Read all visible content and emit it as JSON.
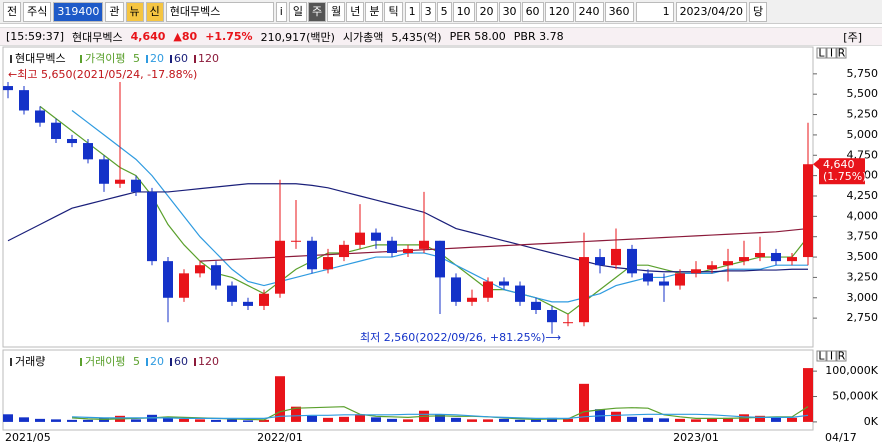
{
  "toolbar": {
    "market": "전",
    "asset": "주식",
    "code": "319400",
    "watch": "관",
    "news": "뉴",
    "credit": "신",
    "name": "현대무벡스",
    "info": "i",
    "periods": [
      "일",
      "주",
      "월",
      "년",
      "분",
      "틱"
    ],
    "intervals": [
      "1",
      "3",
      "5",
      "10",
      "20",
      "30",
      "60",
      "120",
      "240",
      "360"
    ],
    "count": "1",
    "date": "2023/04/20",
    "current": "당"
  },
  "info_bar": {
    "time": "[15:59:37]",
    "name": "현대무벡스",
    "price": "4,640",
    "change": "▲80",
    "change_rate": "+1.75%",
    "volume": "210,917(백만)",
    "market_cap_label": "시가총액",
    "market_cap": "5,435(억)",
    "per": "PER 58.00",
    "pbr": "PBR 3.78",
    "tag": "[주]"
  },
  "panel_buttons": [
    "L",
    "I",
    "R"
  ],
  "chart_data": [
    {
      "type": "candlestick",
      "title": "현대무벡스",
      "legend_title": "가격이평",
      "up_color": "#e8141a",
      "down_color": "#1432c8",
      "open": [
        5600,
        5550,
        5300,
        5150,
        4950,
        4900,
        4700,
        4400,
        4450,
        4300,
        3450,
        3000,
        3300,
        3400,
        3150,
        2950,
        2900,
        3050,
        3700,
        3700,
        3350,
        3500,
        3650,
        3800,
        3700,
        3550,
        3600,
        3700,
        3250,
        2950,
        3000,
        3200,
        3150,
        2950,
        2850,
        2700,
        2700,
        3500,
        3400,
        3600,
        3300,
        3200,
        3150,
        3300,
        3350,
        3400,
        3450,
        3500,
        3550,
        3450,
        3500
      ],
      "high": [
        5650,
        5600,
        5350,
        5200,
        5000,
        4950,
        4750,
        5650,
        4500,
        4350,
        3500,
        3350,
        3450,
        3450,
        3200,
        3000,
        3100,
        4450,
        4200,
        3750,
        3600,
        3700,
        4150,
        3850,
        3750,
        3650,
        4300,
        3700,
        3300,
        3100,
        3250,
        3250,
        3200,
        3000,
        2900,
        2800,
        3800,
        3600,
        3850,
        3650,
        3350,
        3300,
        3350,
        3450,
        3450,
        3600,
        3700,
        3750,
        3600,
        3550,
        5150
      ],
      "low": [
        5450,
        5250,
        5100,
        4900,
        4850,
        4650,
        4300,
        4350,
        4250,
        3400,
        2700,
        2950,
        3250,
        3100,
        2900,
        2850,
        2850,
        3000,
        3600,
        3300,
        3300,
        3450,
        3600,
        3600,
        3500,
        3500,
        3550,
        2800,
        2900,
        2900,
        2950,
        3100,
        2900,
        2800,
        2560,
        2650,
        2650,
        3300,
        3350,
        3250,
        3150,
        2950,
        3100,
        3250,
        3300,
        3200,
        3400,
        3450,
        3400,
        3400,
        3400
      ],
      "close": [
        5550,
        5300,
        5150,
        4950,
        4900,
        4700,
        4400,
        4450,
        4300,
        3450,
        3000,
        3300,
        3400,
        3150,
        2950,
        2900,
        3050,
        3700,
        3700,
        3350,
        3500,
        3650,
        3800,
        3700,
        3550,
        3600,
        3700,
        3250,
        2950,
        3000,
        3200,
        3150,
        2950,
        2850,
        2700,
        2700,
        3500,
        3400,
        3600,
        3300,
        3200,
        3150,
        3300,
        3350,
        3400,
        3450,
        3500,
        3550,
        3450,
        3500,
        4640
      ],
      "series": [
        {
          "name": "5",
          "color": "#5aa02c",
          "values": [
            null,
            null,
            5350,
            5200,
            5050,
            4900,
            4750,
            4600,
            4500,
            4250,
            3900,
            3650,
            3450,
            3300,
            3250,
            3150,
            3050,
            3200,
            3350,
            3450,
            3550,
            3550,
            3600,
            3650,
            3650,
            3650,
            3650,
            3550,
            3400,
            3250,
            3100,
            3100,
            3050,
            3000,
            2900,
            2800,
            2950,
            3100,
            3250,
            3400,
            3400,
            3350,
            3300,
            3300,
            3350,
            3400,
            3450,
            3500,
            3500,
            3500,
            3750
          ]
        },
        {
          "name": "20",
          "color": "#2f9be0",
          "values": [
            null,
            null,
            null,
            null,
            5300,
            5150,
            5000,
            4850,
            4700,
            4500,
            4250,
            4000,
            3750,
            3550,
            3350,
            3200,
            3150,
            3200,
            3250,
            3300,
            3350,
            3400,
            3450,
            3500,
            3500,
            3550,
            3550,
            3500,
            3400,
            3300,
            3200,
            3100,
            3050,
            3000,
            2950,
            2950,
            3000,
            3050,
            3150,
            3200,
            3250,
            3250,
            3300,
            3300,
            3300,
            3350,
            3350,
            3350,
            3400,
            3400,
            3400
          ]
        },
        {
          "name": "60",
          "color": "#1a1f7a",
          "values": [
            3700,
            3800,
            3900,
            4000,
            4100,
            4150,
            4200,
            4250,
            4300,
            4300,
            4300,
            4320,
            4340,
            4360,
            4380,
            4400,
            4400,
            4400,
            4400,
            4380,
            4350,
            4300,
            4250,
            4200,
            4150,
            4100,
            4050,
            3950,
            3850,
            3800,
            3750,
            3700,
            3650,
            3600,
            3550,
            3500,
            3450,
            3400,
            3370,
            3350,
            3330,
            3320,
            3320,
            3320,
            3320,
            3330,
            3330,
            3340,
            3340,
            3350,
            3350
          ]
        },
        {
          "name": "120",
          "color": "#8b1a3a",
          "values": [
            null,
            null,
            null,
            null,
            null,
            null,
            null,
            null,
            null,
            null,
            null,
            null,
            3450,
            3460,
            3470,
            3480,
            3490,
            3500,
            3510,
            3520,
            3530,
            3540,
            3550,
            3560,
            3570,
            3580,
            3590,
            3600,
            3610,
            3620,
            3630,
            3640,
            3650,
            3660,
            3670,
            3680,
            3690,
            3700,
            3710,
            3720,
            3730,
            3740,
            3750,
            3760,
            3770,
            3780,
            3790,
            3800,
            3810,
            3830,
            3850
          ]
        }
      ],
      "ylim": [
        2420,
        5920
      ],
      "yticks": [
        {
          "value": 2750,
          "label": "2,750"
        },
        {
          "value": 3000,
          "label": "3,000"
        },
        {
          "value": 3250,
          "label": "3,250"
        },
        {
          "value": 3500,
          "label": "3,500"
        },
        {
          "value": 3750,
          "label": "3,750"
        },
        {
          "value": 4000,
          "label": "4,000"
        },
        {
          "value": 4250,
          "label": "4,250"
        },
        {
          "value": 4500,
          "label": "4,500"
        },
        {
          "value": 4750,
          "label": "4,750"
        },
        {
          "value": 5000,
          "label": "5,000"
        },
        {
          "value": 5250,
          "label": "5,250"
        },
        {
          "value": 5500,
          "label": "5,500"
        },
        {
          "value": 5750,
          "label": "5,750"
        }
      ],
      "annotations": [
        "←최고 5,650(2021/05/24, -17.88%)",
        "최저 2,560(2022/09/26, +81.25%)⟶"
      ],
      "price_tag": {
        "value": 4640,
        "label": "4,640"
      },
      "price_tag_change": "(1.75%)"
    },
    {
      "type": "volume",
      "title": "거래량",
      "legend_title": "거래이평",
      "categories": [
        "2021/05",
        null,
        null,
        null,
        null,
        null,
        null,
        null,
        null,
        null,
        null,
        null,
        null,
        null,
        null,
        null,
        null,
        "2022/01",
        null,
        null,
        null,
        null,
        null,
        null,
        null,
        null,
        null,
        null,
        null,
        null,
        null,
        null,
        null,
        null,
        null,
        null,
        null,
        null,
        null,
        null,
        null,
        null,
        null,
        "2023/01",
        null,
        null,
        null,
        null,
        null,
        null,
        "04/17"
      ],
      "values": [
        15000,
        9000,
        6000,
        5000,
        4000,
        4000,
        8000,
        12000,
        5000,
        14000,
        10000,
        6000,
        5000,
        4000,
        5000,
        3000,
        4000,
        90000,
        30000,
        12000,
        8000,
        10000,
        15000,
        9000,
        6000,
        5000,
        22000,
        15000,
        8000,
        5000,
        5000,
        6000,
        4000,
        5000,
        8000,
        6000,
        75000,
        25000,
        20000,
        10000,
        8000,
        7000,
        6000,
        5000,
        7000,
        8000,
        15000,
        12000,
        9000,
        8000,
        106000
      ],
      "series": [
        {
          "name": "5",
          "color": "#5aa02c",
          "values": [
            null,
            null,
            null,
            null,
            8000,
            6000,
            5000,
            6000,
            7000,
            8000,
            10000,
            9000,
            8000,
            7000,
            6000,
            5000,
            4000,
            20000,
            27000,
            28000,
            29000,
            30000,
            15000,
            11000,
            10000,
            9000,
            11000,
            12000,
            11000,
            11000,
            10000,
            8000,
            6000,
            5000,
            6000,
            6000,
            20000,
            24000,
            27000,
            28000,
            27000,
            14000,
            10000,
            7000,
            7000,
            7000,
            8000,
            9000,
            10000,
            10000,
            30000
          ]
        },
        {
          "name": "20",
          "color": "#2f9be0",
          "values": [
            null,
            null,
            null,
            null,
            10000,
            9000,
            8000,
            8000,
            8000,
            8000,
            8000,
            7000,
            7000,
            7000,
            7000,
            7000,
            7000,
            11000,
            12000,
            13000,
            13000,
            14000,
            14000,
            14000,
            14000,
            15000,
            15000,
            15000,
            14000,
            12000,
            10000,
            9000,
            8000,
            7000,
            7000,
            7000,
            10000,
            12000,
            13000,
            14000,
            15000,
            15000,
            15000,
            15000,
            14000,
            12000,
            10000,
            9000,
            9000,
            9000,
            13000
          ]
        },
        {
          "name": "60",
          "color": "#1a1f7a"
        },
        {
          "name": "120",
          "color": "#8b1a3a"
        }
      ],
      "ylim": [
        -12000,
        118000
      ],
      "yticks": [
        {
          "value": 0,
          "label": "0K"
        },
        {
          "value": 50000,
          "label": "50,000K"
        },
        {
          "value": 100000,
          "label": "100,000K"
        }
      ]
    }
  ]
}
